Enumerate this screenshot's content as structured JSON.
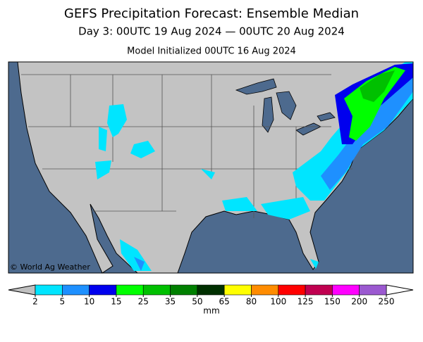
{
  "title": "GEFS Precipitation Forecast: Ensemble Median",
  "subtitle": "Day 3: 00UTC 19 Aug 2024 — 00UTC 20 Aug 2024",
  "initialized": "Model Initialized 00UTC 16 Aug 2024",
  "credit": "© World Ag Weather",
  "legend": {
    "ticks": [
      2,
      5,
      10,
      15,
      25,
      35,
      50,
      65,
      80,
      100,
      125,
      150,
      200,
      250
    ],
    "colors": [
      "#00e5ff",
      "#1e90ff",
      "#0000ee",
      "#00ff00",
      "#00c000",
      "#008000",
      "#003000",
      "#ffff00",
      "#ff8c00",
      "#ff0000",
      "#c00050",
      "#ff00ff",
      "#9b59d0"
    ],
    "below_color": "#c0c0c0",
    "above_color": "#ffffff",
    "unit": "mm"
  }
}
